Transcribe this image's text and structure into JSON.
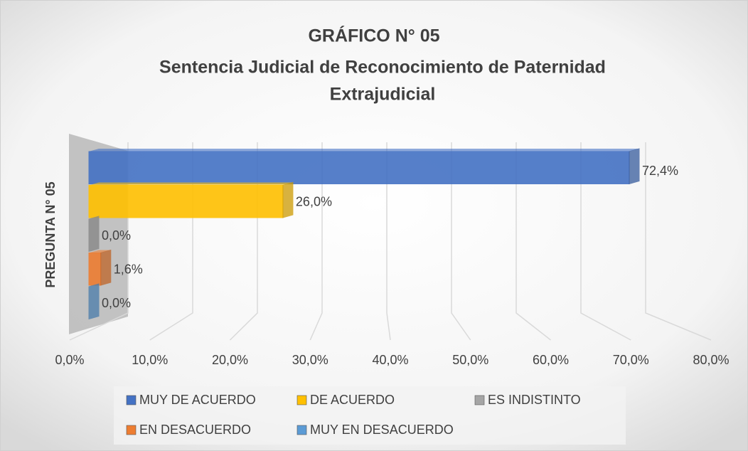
{
  "chart_data": {
    "type": "bar3d",
    "title": "GRÁFICO N° 05",
    "subtitle": [
      "Sentencia Judicial de Reconocimiento de Paternidad",
      "Extrajudicial"
    ],
    "categories": [
      "PREGUNTA N° 05"
    ],
    "series": [
      {
        "name": "MUY DE ACUERDO",
        "color": "#4472c4",
        "values": [
          72.4
        ],
        "value_labels": [
          "72,4%"
        ]
      },
      {
        "name": "DE ACUERDO",
        "color": "#ffc000",
        "values": [
          26.0
        ],
        "value_labels": [
          "26,0%"
        ]
      },
      {
        "name": "ES INDISTINTO",
        "color": "#a5a5a5",
        "values": [
          0.0
        ],
        "value_labels": [
          "0,0%"
        ]
      },
      {
        "name": "EN DESACUERDO",
        "color": "#ed7d31",
        "values": [
          1.6
        ],
        "value_labels": [
          "1,6%"
        ]
      },
      {
        "name": "MUY EN DESACUERDO",
        "color": "#5b9bd5",
        "values": [
          0.0
        ],
        "value_labels": [
          "0,0%"
        ]
      }
    ],
    "xlim": [
      0,
      80
    ],
    "xticks": [
      {
        "value": 0,
        "label": "0,0%"
      },
      {
        "value": 10,
        "label": "10,0%"
      },
      {
        "value": 20,
        "label": "20,0%"
      },
      {
        "value": 30,
        "label": "30,0%"
      },
      {
        "value": 40,
        "label": "40,0%"
      },
      {
        "value": 50,
        "label": "50,0%"
      },
      {
        "value": 60,
        "label": "60,0%"
      },
      {
        "value": 70,
        "label": "70,0%"
      },
      {
        "value": 80,
        "label": "80,0%"
      }
    ],
    "grid": true,
    "legend": "bottom"
  }
}
